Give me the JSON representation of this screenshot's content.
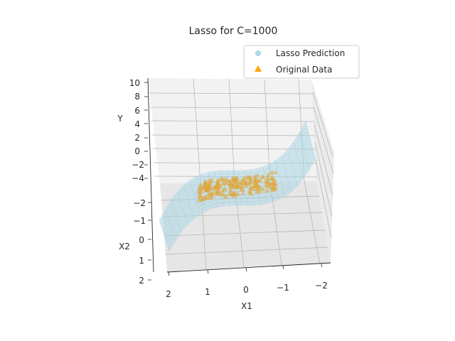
{
  "chart_data": {
    "type": "scatter",
    "title": "Lasso for C=1000",
    "xlabel": "X1",
    "ylabel": "X2",
    "zlabel": "Y",
    "x_ticks": [
      "2",
      "1",
      "0",
      "−1",
      "−2"
    ],
    "y_ticks": [
      "−2",
      "−1",
      "0",
      "1",
      "2"
    ],
    "z_ticks": [
      "10",
      "8",
      "6",
      "4",
      "2",
      "0",
      "−2",
      "−4"
    ],
    "xlim": [
      -2.3,
      2.3
    ],
    "ylim": [
      -2.3,
      2.3
    ],
    "zlim": [
      -5,
      10
    ],
    "grid": true,
    "legend_position": "top-right",
    "series": [
      {
        "name": "Lasso Prediction",
        "kind": "surface",
        "color": "#add8e6",
        "marker": "circle"
      },
      {
        "name": "Original Data",
        "kind": "scatter",
        "color": "#ffa500",
        "marker": "triangle"
      }
    ]
  },
  "colors": {
    "surface": "#add8e6",
    "surface_mesh": "#9fb4c2",
    "points": "#e0a63a",
    "grid": "#b0b0b0",
    "pane": "#f2f2f2"
  }
}
